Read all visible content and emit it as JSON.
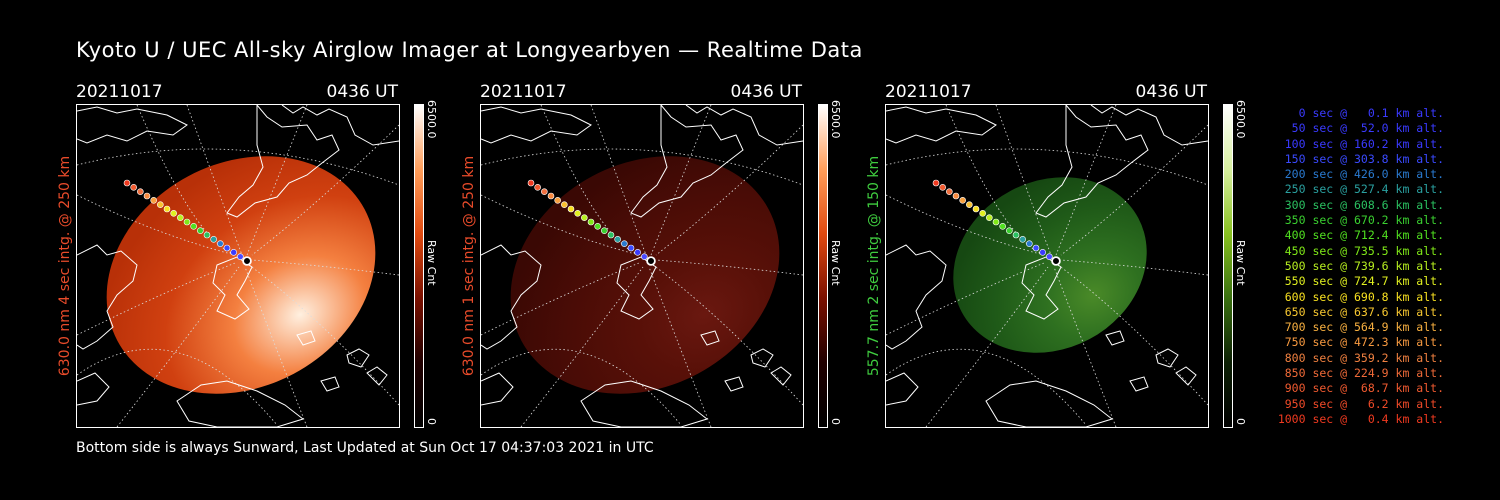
{
  "title": "Kyoto U / UEC All-sky Airglow Imager at Longyearbyen — Realtime Data",
  "footer": "Bottom side is always Sunward, Last Updated at Sun Oct 17 04:37:03 2021 in UTC",
  "panels": [
    {
      "date": "20211017",
      "time": "0436 UT",
      "label": "630.0 nm 4 sec intg. @ 250 km",
      "label_color": "#e84b2a",
      "cbar_max": "6500.0",
      "cbar_label": "Raw Cnt",
      "cbar_min": "0",
      "cbar_colors": [
        "#ffffff",
        "#ff9e5a",
        "#e04a10",
        "#7a1000",
        "#200000",
        "#000000"
      ],
      "blob_colors": [
        "#fff0e0",
        "#f48040",
        "#d04010",
        "#b83008"
      ],
      "blob_intensity": 1.0
    },
    {
      "date": "20211017",
      "time": "0436 UT",
      "label": "630.0 nm 1 sec intg. @ 250 km",
      "label_color": "#e84b2a",
      "cbar_max": "6500.0",
      "cbar_label": "Raw Cnt",
      "cbar_min": "0",
      "cbar_colors": [
        "#ffffff",
        "#ff9e5a",
        "#e04a10",
        "#7a1000",
        "#200000",
        "#000000"
      ],
      "blob_colors": [
        "#6a1810",
        "#581008",
        "#4a0c06",
        "#3a0804"
      ],
      "blob_intensity": 0.8
    },
    {
      "date": "20211017",
      "time": "0436 UT",
      "label": "557.7 nm 2 sec intg. @ 150 km",
      "label_color": "#3fcc3f",
      "cbar_max": "6500.0",
      "cbar_label": "Raw Cnt",
      "cbar_min": "0",
      "cbar_colors": [
        "#ffffff",
        "#d8f0a0",
        "#88c020",
        "#3a7010",
        "#0c2004",
        "#000000"
      ],
      "blob_colors": [
        "#4a8a28",
        "#2e7020",
        "#1f5a18",
        "#164812"
      ],
      "blob_intensity": 0.7
    }
  ],
  "legend": [
    {
      "text": "0 sec @   0.1 km alt.",
      "color": "#3a3aff"
    },
    {
      "text": "50 sec @  52.0 km alt.",
      "color": "#3a3aff"
    },
    {
      "text": "100 sec @ 160.2 km alt.",
      "color": "#3a3aff"
    },
    {
      "text": "150 sec @ 303.8 km alt.",
      "color": "#3a4aff"
    },
    {
      "text": "200 sec @ 426.0 km alt.",
      "color": "#2a7ad0"
    },
    {
      "text": "250 sec @ 527.4 km alt.",
      "color": "#2aa0a0"
    },
    {
      "text": "300 sec @ 608.6 km alt.",
      "color": "#2ac060"
    },
    {
      "text": "350 sec @ 670.2 km alt.",
      "color": "#3ad030"
    },
    {
      "text": "400 sec @ 712.4 km alt.",
      "color": "#50e020"
    },
    {
      "text": "450 sec @ 735.5 km alt.",
      "color": "#80e818"
    },
    {
      "text": "500 sec @ 739.6 km alt.",
      "color": "#b8f020"
    },
    {
      "text": "550 sec @ 724.7 km alt.",
      "color": "#e0f020"
    },
    {
      "text": "600 sec @ 690.8 km alt.",
      "color": "#f8e020"
    },
    {
      "text": "650 sec @ 637.6 km alt.",
      "color": "#f8c830"
    },
    {
      "text": "700 sec @ 564.9 km alt.",
      "color": "#f8b040"
    },
    {
      "text": "750 sec @ 472.3 km alt.",
      "color": "#f89a40"
    },
    {
      "text": "800 sec @ 359.2 km alt.",
      "color": "#f08040"
    },
    {
      "text": "850 sec @ 224.9 km alt.",
      "color": "#f06a38"
    },
    {
      "text": "900 sec @  68.7 km alt.",
      "color": "#f05a30"
    },
    {
      "text": "950 sec @   6.2 km alt.",
      "color": "#f04a28"
    },
    {
      "text": "1000 sec @   0.4 km alt.",
      "color": "#f03a20"
    }
  ],
  "track_colors": [
    "#f03a20",
    "#f05a30",
    "#f07040",
    "#f88a40",
    "#f8a040",
    "#f8c030",
    "#f8e020",
    "#e0f020",
    "#b8f020",
    "#80e818",
    "#50e020",
    "#3ad030",
    "#2ac060",
    "#2aa0a0",
    "#2a7ad0",
    "#3a4aff",
    "#3a3aff",
    "#4a4aff",
    "#ffffff"
  ]
}
